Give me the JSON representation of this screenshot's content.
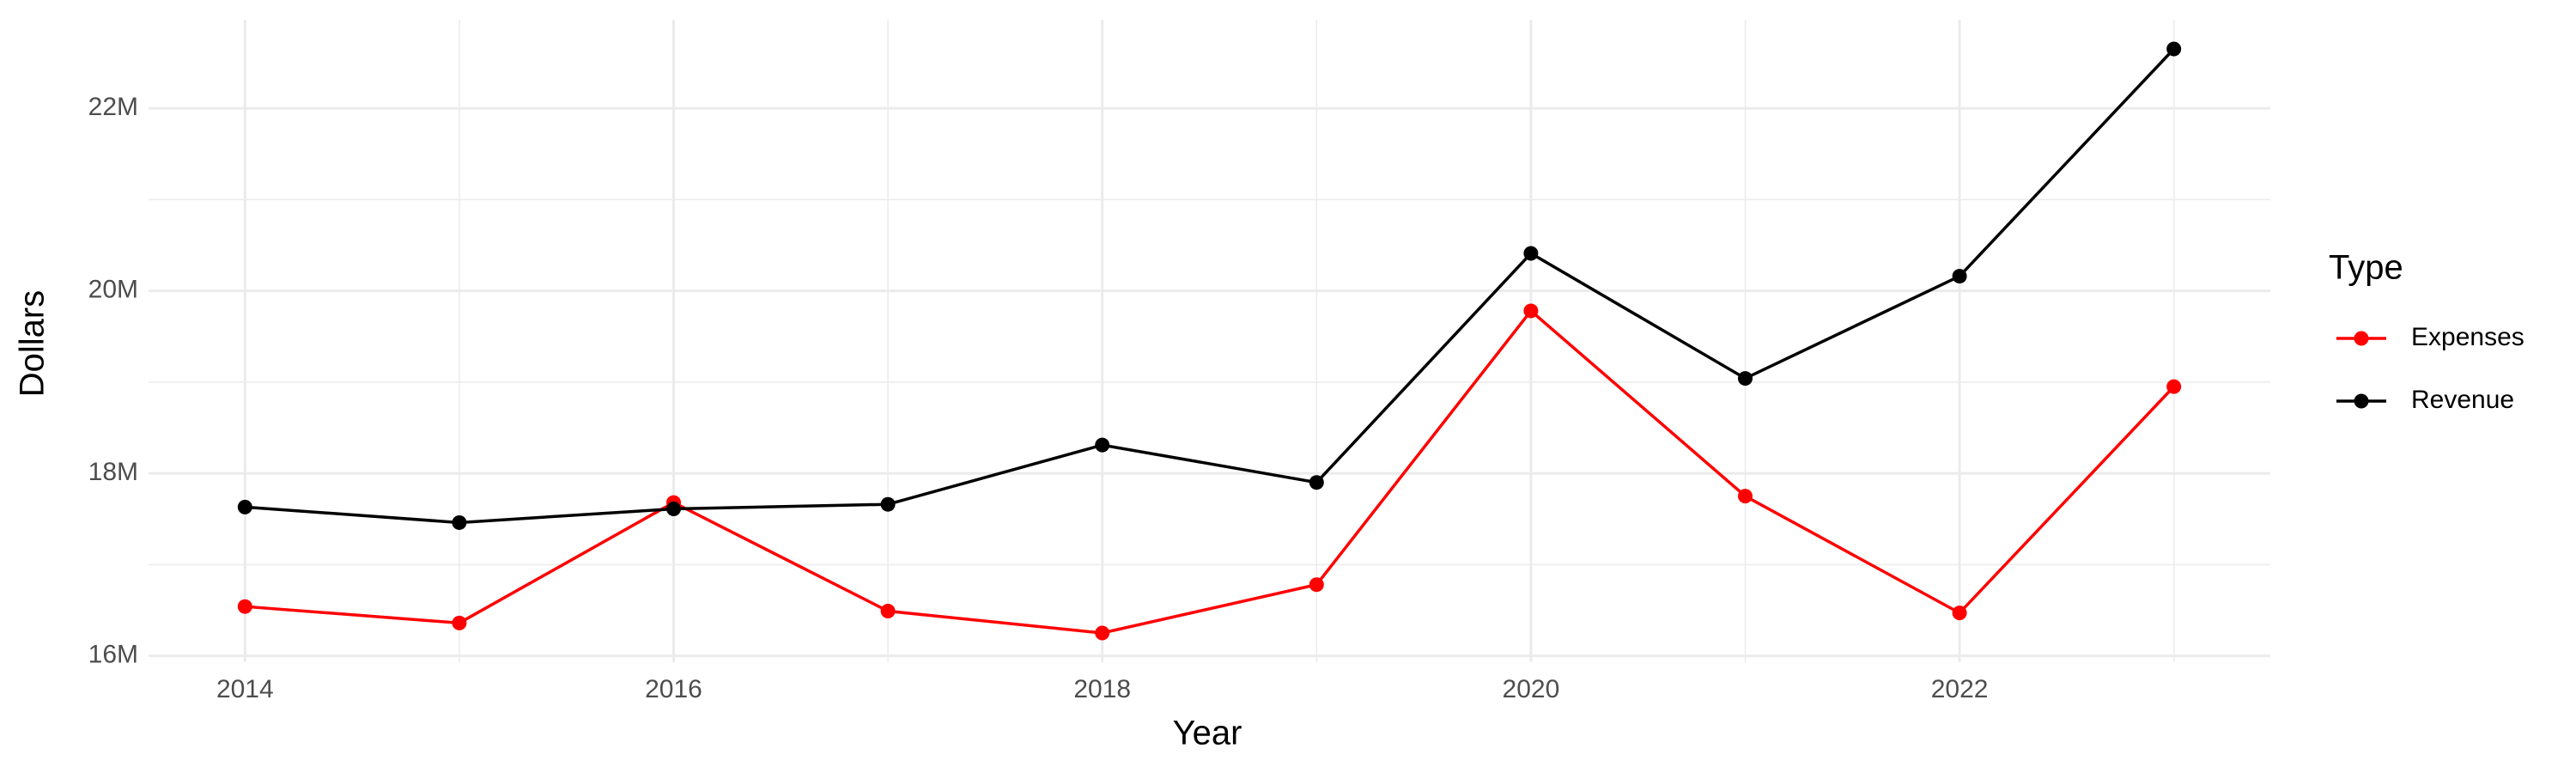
{
  "chart_data": {
    "type": "line",
    "x_label": "Year",
    "y_label": "Dollars",
    "legend_title": "Type",
    "legend_position": "right",
    "grid": true,
    "x": [
      2014,
      2015,
      2016,
      2017,
      2018,
      2019,
      2020,
      2021,
      2022,
      2023
    ],
    "series": [
      {
        "name": "Expenses",
        "color": "#ff0000",
        "values": [
          16540000,
          16360000,
          17680000,
          16490000,
          16250000,
          16780000,
          19780000,
          17750000,
          16470000,
          18950000
        ]
      },
      {
        "name": "Revenue",
        "color": "#000000",
        "values": [
          17630000,
          17460000,
          17610000,
          17660000,
          18310000,
          17900000,
          20410000,
          19040000,
          20160000,
          22650000
        ]
      }
    ],
    "xlim": [
      2013.55,
      2023.45
    ],
    "xticks": [
      2014,
      2016,
      2018,
      2020,
      2022
    ],
    "ylim": [
      15930000,
      22970000
    ],
    "yticks": [
      {
        "value": 16000000,
        "label": "16M"
      },
      {
        "value": 18000000,
        "label": "18M"
      },
      {
        "value": 20000000,
        "label": "20M"
      },
      {
        "value": 22000000,
        "label": "22M"
      }
    ]
  }
}
